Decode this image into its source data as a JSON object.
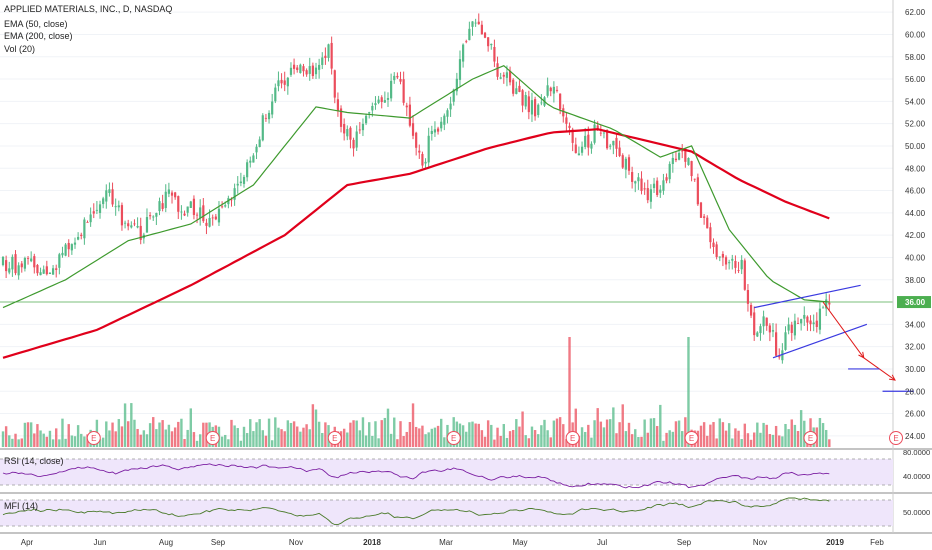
{
  "header": {
    "symbol_line": "APPLIED MATERIALS, INC., D, NASDAQ",
    "ema50_label": "EMA (50, close)",
    "ema200_label": "EMA (200, close)",
    "vol_label": "Vol (20)"
  },
  "rsi_panel": {
    "label": "RSI (14, close)",
    "ticks": [
      "80.0000",
      "40.0000"
    ]
  },
  "mfi_panel": {
    "label": "MFI (14)",
    "ticks": [
      "50.0000"
    ]
  },
  "price_badge": "36.00",
  "earnings_marker": "E",
  "colors": {
    "up": "#53b987",
    "down": "#eb4d5c",
    "ema50": "#3e9a2e",
    "ema200": "#e0001b",
    "channel": "#3a3ae0",
    "arrow": "#e01b1b",
    "badge": "#4caf50",
    "panel_fill": "#efe6fb",
    "rsi_line": "#7b1fa2",
    "mfi_line": "#4a7a2a"
  },
  "chart_data": {
    "type": "candlestick",
    "title": "APPLIED MATERIALS, INC., D, NASDAQ",
    "x_labels": [
      "Apr",
      "Jun",
      "Aug",
      "Sep",
      "Nov",
      "2018",
      "Mar",
      "May",
      "Jul",
      "Sep",
      "Nov",
      "2019",
      "Feb"
    ],
    "y_ticks": [
      "62.00",
      "60.00",
      "58.00",
      "56.00",
      "54.00",
      "52.00",
      "50.00",
      "48.00",
      "46.00",
      "44.00",
      "42.00",
      "40.00",
      "38.00",
      "36.00",
      "34.00",
      "32.00",
      "30.00",
      "28.00",
      "26.00",
      "24.00"
    ],
    "ylim": [
      23,
      63
    ],
    "close_anchors": [
      [
        0,
        39.5
      ],
      [
        12,
        39.0
      ],
      [
        18,
        39.8
      ],
      [
        26,
        43.0
      ],
      [
        33,
        46.5
      ],
      [
        38,
        43.5
      ],
      [
        44,
        42.0
      ],
      [
        52,
        45.5
      ],
      [
        58,
        44.5
      ],
      [
        66,
        43.5
      ],
      [
        72,
        45.0
      ],
      [
        78,
        48.0
      ],
      [
        86,
        54.5
      ],
      [
        94,
        57.0
      ],
      [
        100,
        56.8
      ],
      [
        104,
        58.5
      ],
      [
        108,
        51.5
      ],
      [
        112,
        50.5
      ],
      [
        118,
        53.0
      ],
      [
        126,
        56.0
      ],
      [
        130,
        52.0
      ],
      [
        134,
        48.0
      ],
      [
        136,
        50.5
      ],
      [
        142,
        53.5
      ],
      [
        148,
        59.5
      ],
      [
        152,
        61.5
      ],
      [
        158,
        57.0
      ],
      [
        164,
        55.0
      ],
      [
        170,
        53.0
      ],
      [
        176,
        55.5
      ],
      [
        180,
        52.0
      ],
      [
        184,
        49.5
      ],
      [
        190,
        51.5
      ],
      [
        196,
        49.5
      ],
      [
        202,
        47.0
      ],
      [
        206,
        45.0
      ],
      [
        212,
        47.5
      ],
      [
        216,
        49.5
      ],
      [
        220,
        48.0
      ],
      [
        222,
        44.5
      ],
      [
        228,
        40.5
      ],
      [
        232,
        39.5
      ],
      [
        236,
        39.0
      ],
      [
        240,
        33.0
      ],
      [
        244,
        34.5
      ],
      [
        248,
        31.0
      ],
      [
        252,
        34.0
      ],
      [
        256,
        35.0
      ],
      [
        260,
        34.5
      ],
      [
        264,
        36.0
      ]
    ],
    "ema50_anchors": [
      [
        0,
        35.5
      ],
      [
        20,
        38.0
      ],
      [
        40,
        41.5
      ],
      [
        60,
        43.0
      ],
      [
        80,
        46.5
      ],
      [
        100,
        53.5
      ],
      [
        110,
        53.0
      ],
      [
        130,
        52.5
      ],
      [
        150,
        56.0
      ],
      [
        160,
        57.2
      ],
      [
        175,
        53.5
      ],
      [
        195,
        51.5
      ],
      [
        210,
        49.0
      ],
      [
        220,
        50.0
      ],
      [
        232,
        42.5
      ],
      [
        245,
        38.0
      ],
      [
        256,
        36.2
      ],
      [
        264,
        36.0
      ]
    ],
    "ema200_anchors": [
      [
        0,
        31.0
      ],
      [
        30,
        33.5
      ],
      [
        60,
        37.5
      ],
      [
        90,
        42.0
      ],
      [
        110,
        46.5
      ],
      [
        130,
        47.5
      ],
      [
        155,
        49.8
      ],
      [
        175,
        51.2
      ],
      [
        190,
        51.5
      ],
      [
        205,
        50.5
      ],
      [
        220,
        49.5
      ],
      [
        235,
        47.0
      ],
      [
        250,
        45.0
      ],
      [
        264,
        43.5
      ]
    ],
    "volume_spikes": [
      181,
      219
    ],
    "earnings_days": [
      29,
      67,
      106,
      144,
      182,
      220,
      258
    ],
    "channel_upper": [
      [
        240,
        35.5
      ],
      [
        274,
        37.5
      ]
    ],
    "channel_lower": [
      [
        246,
        31.0
      ],
      [
        276,
        34.0
      ]
    ],
    "projection_arrows": [
      [
        [
          262,
          36.0
        ],
        [
          275,
          31.0
        ]
      ],
      [
        [
          275,
          31.0
        ],
        [
          285,
          29.0
        ]
      ]
    ],
    "target_levels": [
      [
        270,
        280,
        30.0
      ],
      [
        281,
        291,
        28.0
      ]
    ],
    "horizontal_level": 36.0,
    "last_close": 36.0
  }
}
